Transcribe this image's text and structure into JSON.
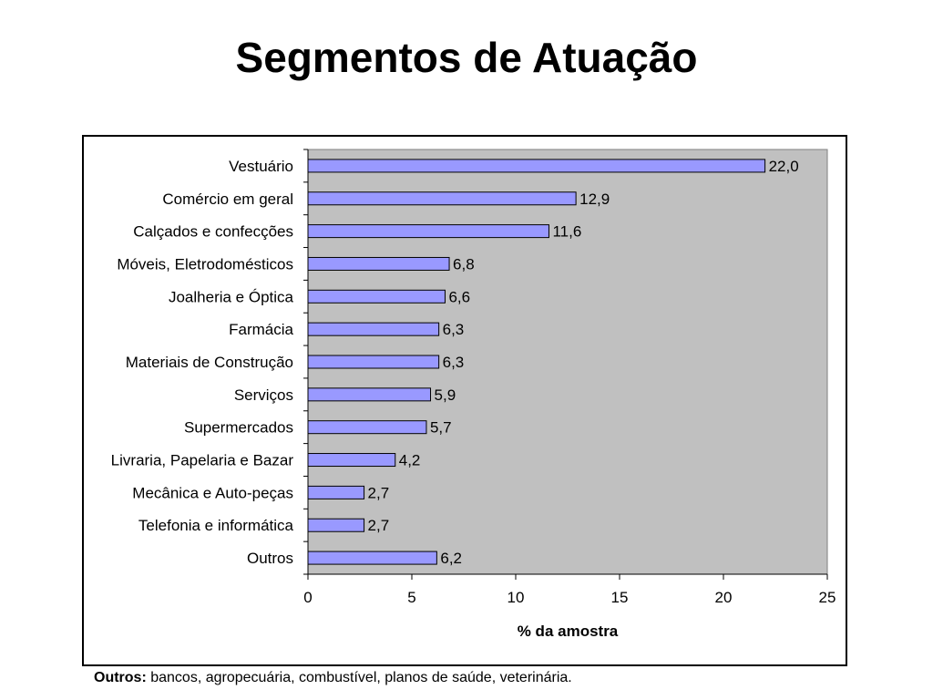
{
  "page": {
    "title": "Segmentos de Atuação",
    "footnote_label": "Outros:",
    "footnote_text": " bancos, agropecuária, combustível, planos de saúde, veterinária."
  },
  "chart_data": {
    "type": "bar",
    "orientation": "horizontal",
    "categories": [
      "Vestuário",
      "Comércio em geral",
      "Calçados e confecções",
      "Móveis, Eletrodomésticos",
      "Joalheria e Óptica",
      "Farmácia",
      "Materiais de Construção",
      "Serviços",
      "Supermercados",
      "Livraria, Papelaria e Bazar",
      "Mecânica e Auto-peças",
      "Telefonia e informática",
      "Outros"
    ],
    "values": [
      22.0,
      12.9,
      11.6,
      6.8,
      6.6,
      6.3,
      6.3,
      5.9,
      5.7,
      4.2,
      2.7,
      2.7,
      6.2
    ],
    "value_labels": [
      "22,0",
      "12,9",
      "11,6",
      "6,8",
      "6,6",
      "6,3",
      "6,3",
      "5,9",
      "5,7",
      "4,2",
      "2,7",
      "2,7",
      "6,2"
    ],
    "xlabel": "% da amostra",
    "ylabel": "",
    "xlim": [
      0,
      25
    ],
    "xticks": [
      0,
      5,
      10,
      15,
      20,
      25
    ],
    "xtick_labels": [
      "0",
      "5",
      "10",
      "15",
      "20",
      "25"
    ],
    "grid": false,
    "legend": "none",
    "colors": {
      "bar_fill": "#9999ff",
      "bar_stroke": "#000000",
      "plot_background": "#c0c0c0"
    }
  }
}
